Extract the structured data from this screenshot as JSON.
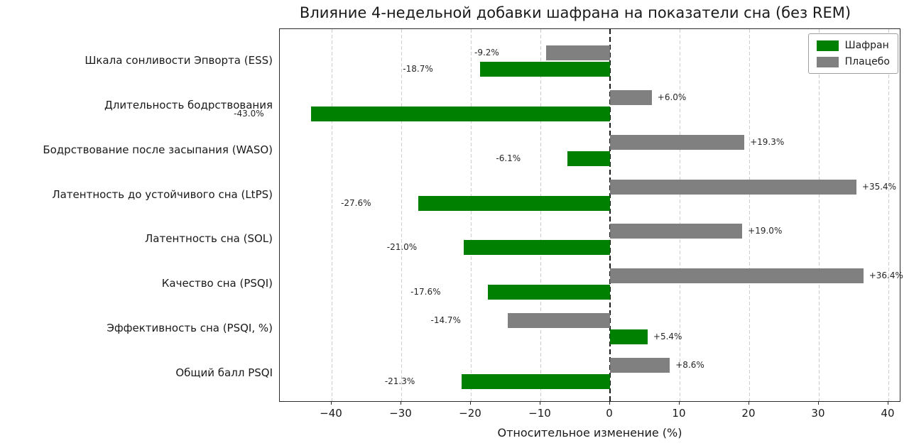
{
  "chart_data": {
    "type": "bar",
    "orientation": "horizontal",
    "title": "Влияние 4-недельной добавки шафрана на показатели сна (без REM)",
    "xlabel": "Относительное изменение (%)",
    "categories": [
      "Шкала сонливости Эпворта (ESS)",
      "Длительность бодрствования",
      "Бодрствование после засыпания (WASO)",
      "Латентность до устойчивого сна (LtPS)",
      "Латентность сна (SOL)",
      "Качество сна (PSQI)",
      "Эффективность сна (PSQI, %)",
      "Общий балл PSQI"
    ],
    "series": [
      {
        "name": "Шафран",
        "key": "saffron",
        "color": "#008000",
        "values": [
          -18.7,
          -43.0,
          -6.1,
          -27.6,
          -21.0,
          -17.6,
          5.4,
          -21.3
        ],
        "labels": [
          "-18.7%",
          "-43.0%",
          "-6.1%",
          "-27.6%",
          "-21.0%",
          "-17.6%",
          "+5.4%",
          "-21.3%"
        ]
      },
      {
        "name": "Плацебо",
        "key": "placebo",
        "color": "#808080",
        "values": [
          -9.2,
          6.0,
          19.3,
          35.4,
          19.0,
          36.4,
          -14.7,
          8.6
        ],
        "labels": [
          "-9.2%",
          "+6.0%",
          "+19.3%",
          "+35.4%",
          "+19.0%",
          "+36.4%",
          "-14.7%",
          "+8.6%"
        ]
      }
    ],
    "group_order_top_to_bottom": [
      "Плацебо",
      "Шафран"
    ],
    "xticks": [
      -40,
      -30,
      -20,
      -10,
      0,
      10,
      20,
      30,
      40
    ],
    "xtick_labels": [
      "−40",
      "−30",
      "−20",
      "−10",
      "0",
      "10",
      "20",
      "30",
      "40"
    ],
    "xlim": [
      -47.45,
      41.84
    ],
    "grid": "vertical-dashed",
    "zero_line": "black-dashed",
    "legend_position": "upper-right"
  }
}
